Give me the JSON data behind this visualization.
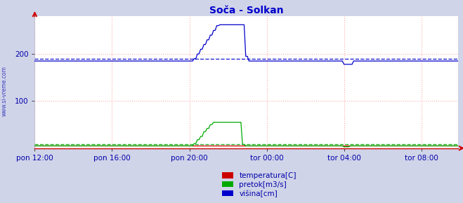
{
  "title": "Soča - Solkan",
  "title_color": "#0000cc",
  "bg_color": "#d0d4e8",
  "plot_bg_color": "#ffffff",
  "grid_color": "#ffaaaa",
  "xlabel_color": "#0000aa",
  "watermark": "www.si-vreme.com",
  "watermark_color": "#0000aa",
  "x_tick_labels": [
    "pon 12:00",
    "pon 16:00",
    "pon 20:00",
    "tor 00:00",
    "tor 04:00",
    "tor 08:00"
  ],
  "x_tick_positions": [
    0,
    48,
    96,
    144,
    192,
    240
  ],
  "total_points": 264,
  "ylim": [
    0,
    280
  ],
  "y_ticks": [
    100,
    200
  ],
  "avg_visina": 190,
  "avg_pretok": 8,
  "visina_base": 185,
  "visina_spike_start": 96,
  "visina_step_vals": [
    185,
    190,
    200,
    210,
    220,
    230,
    240,
    250,
    260,
    262,
    262,
    262,
    262,
    262,
    262,
    262,
    262,
    195,
    185
  ],
  "visina_step_indices": [
    96,
    99,
    101,
    103,
    105,
    107,
    109,
    111,
    113,
    115,
    117,
    119,
    121,
    123,
    125,
    127,
    129,
    131,
    133
  ],
  "visina_post": 185,
  "pretok_base": 5,
  "pretok_step_vals": [
    5,
    10,
    18,
    25,
    35,
    42,
    50,
    55,
    55,
    55,
    55,
    55,
    8,
    5
  ],
  "pretok_step_indices": [
    96,
    99,
    101,
    103,
    105,
    107,
    109,
    111,
    113,
    115,
    117,
    119,
    129,
    131
  ],
  "temperatura_val": 5,
  "legend_labels": [
    "temperatura[C]",
    "pretok[m3/s]",
    "višina[cm]"
  ],
  "legend_colors": [
    "#cc0000",
    "#00aa00",
    "#0000cc"
  ],
  "arrow_color": "#cc0000",
  "line_color_visina": "#0000cc",
  "line_color_pretok": "#00aa00",
  "line_color_temp": "#cc0000",
  "dashed_color_visina": "#0000cc",
  "dashed_color_pretok": "#00aa00",
  "dip_idx": 192,
  "dip_val": 178
}
